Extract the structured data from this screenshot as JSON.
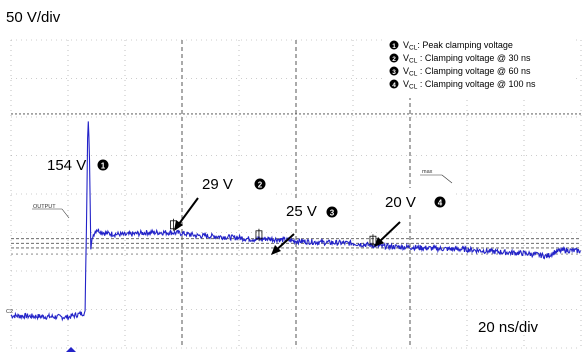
{
  "chart_data": {
    "type": "line",
    "title": "",
    "vertical_scale": "50 V/div",
    "horizontal_scale": "20 ns/div",
    "grid": true,
    "legend_placement": "top-right",
    "x_unit": "ns",
    "y_unit": "V",
    "xlim": [
      0,
      200
    ],
    "ylim": [
      -150,
      250
    ],
    "colors": {
      "trace": "#2323c8",
      "arrow": "#000000",
      "grid": "#999999",
      "marker": "#0a0a0a"
    },
    "series": [
      {
        "x": [
          0,
          20,
          24,
          26,
          26.6,
          27,
          27.5,
          28,
          28.5,
          29,
          30,
          33,
          40,
          48,
          56,
          60,
          65,
          72,
          80,
          86,
          90,
          100,
          110,
          120,
          130,
          140,
          150,
          160,
          170,
          180,
          185,
          188,
          191,
          194,
          200
        ],
        "y": [
          -108,
          -110,
          -106,
          -104,
          40,
          154,
          110,
          -22,
          -6,
          -2,
          4,
          -1,
          -3,
          0,
          0,
          -1,
          -4,
          -5,
          -7,
          -9,
          -8,
          -11,
          -13,
          -14,
          -18,
          -19,
          -21,
          -22,
          -25,
          -27,
          -29,
          -31,
          -25,
          -23,
          -24
        ]
      }
    ],
    "annotations": [
      {
        "label": "154 V",
        "marker": "1",
        "x": 27,
        "y": 154
      },
      {
        "label": "29 V",
        "marker": "2",
        "x": 57,
        "y": 10
      },
      {
        "label": "25 V",
        "marker": "3",
        "x": 87,
        "y": -3
      },
      {
        "label": "20 V",
        "marker": "4",
        "x": 127,
        "y": -10
      }
    ],
    "legend": [
      {
        "marker": "1",
        "symbol": "V",
        "subscript": "CL",
        "text": ": Peak clamping voltage"
      },
      {
        "marker": "2",
        "symbol": "V",
        "subscript": "CL",
        "text": " : Clamping voltage @ 30 ns"
      },
      {
        "marker": "3",
        "symbol": "V",
        "subscript": "CL",
        "text": " : Clamping voltage @ 60 ns"
      },
      {
        "marker": "4",
        "symbol": "V",
        "subscript": "CL",
        "text": " : Clamping voltage @ 100 ns"
      }
    ],
    "scope_labels": {
      "output": "OUTPUT",
      "max": "max",
      "channel": "C2"
    }
  }
}
